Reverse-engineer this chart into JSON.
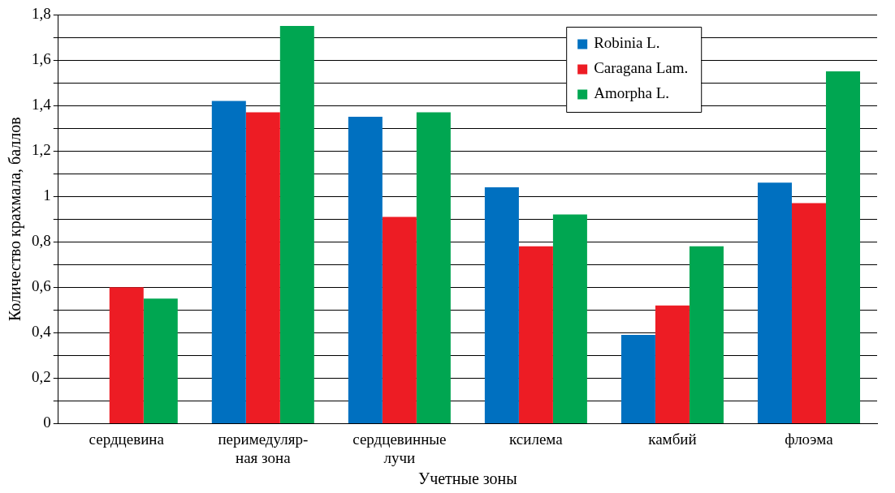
{
  "chart_data": {
    "type": "bar",
    "xlabel": "Учетные зоны",
    "ylabel": "Количество крахмала, баллов",
    "categories": [
      "сердцевина",
      "перимедуляр-\nная зона",
      "сердцевинные\nлучи",
      "ксилема",
      "камбий",
      "флоэма"
    ],
    "series": [
      {
        "name": "Robinia L.",
        "color": "#0070c0",
        "values": [
          0,
          1.42,
          1.35,
          1.04,
          0.39,
          1.06
        ]
      },
      {
        "name": "Caragana Lam.",
        "color": "#ed1c24",
        "values": [
          0.6,
          1.37,
          0.91,
          0.78,
          0.52,
          0.97
        ]
      },
      {
        "name": "Amorpha L.",
        "color": "#00a651",
        "values": [
          0.55,
          1.75,
          1.37,
          0.92,
          0.78,
          1.55
        ]
      }
    ],
    "ylim": [
      0,
      1.8
    ],
    "yticks": [
      0,
      {
        "value": 0.1,
        "label": null
      },
      "0,2",
      {
        "value": 0.3,
        "label": null
      },
      "0,4",
      {
        "value": 0.5,
        "label": null
      },
      "0,6",
      {
        "value": 0.7,
        "label": null
      },
      "0,8",
      {
        "value": 0.9,
        "label": null
      },
      1,
      {
        "value": 1.1,
        "label": null
      },
      "1,2",
      {
        "value": 1.3,
        "label": null
      },
      "1,4",
      {
        "value": 1.5,
        "label": null
      },
      "1,6",
      {
        "value": 1.7,
        "label": null
      },
      "1,8"
    ],
    "grid": "y",
    "legend": "top right"
  }
}
